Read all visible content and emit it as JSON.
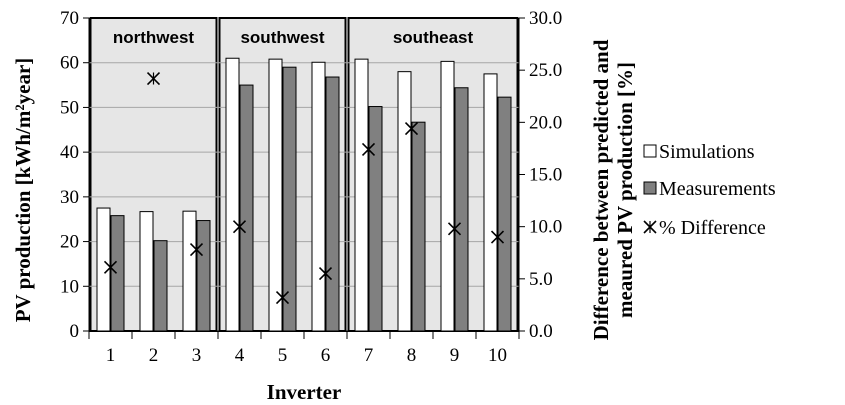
{
  "chart_data": {
    "type": "bar",
    "xlabel": "Inverter",
    "ylabel": "PV production [kWh/m²year]",
    "y2label_line1": "Difference between predicted and",
    "y2label_line2": "meaured PV production [%]",
    "ylim": [
      0,
      70
    ],
    "y2lim": [
      0,
      30
    ],
    "yticks": [
      "0",
      "10",
      "20",
      "30",
      "40",
      "50",
      "60",
      "70"
    ],
    "y2ticks": [
      "0.0",
      "5.0",
      "10.0",
      "15.0",
      "20.0",
      "25.0",
      "30.0"
    ],
    "categories": [
      "1",
      "2",
      "3",
      "4",
      "5",
      "6",
      "7",
      "8",
      "9",
      "10"
    ],
    "regions": [
      {
        "label": "northwest",
        "from": 1,
        "to": 3
      },
      {
        "label": "southwest",
        "from": 4,
        "to": 6
      },
      {
        "label": "southeast",
        "from": 7,
        "to": 10
      }
    ],
    "series": [
      {
        "name": "Simulations",
        "axis": "left",
        "kind": "bar",
        "color": "#ffffff",
        "values": [
          27.5,
          26.7,
          26.8,
          61.0,
          60.8,
          60.1,
          60.8,
          58.0,
          60.3,
          57.5
        ]
      },
      {
        "name": "Measurements",
        "axis": "left",
        "kind": "bar",
        "color": "#808080",
        "values": [
          25.8,
          20.2,
          24.7,
          55.0,
          59.0,
          56.8,
          50.2,
          46.7,
          54.4,
          52.3
        ]
      },
      {
        "name": "% Difference",
        "axis": "right",
        "kind": "marker",
        "values": [
          6.1,
          24.2,
          7.8,
          10.0,
          3.2,
          5.5,
          17.4,
          19.4,
          9.8,
          9.0
        ]
      }
    ],
    "legend_position": "right",
    "grid": true,
    "colors": {
      "region_bg": "#e6e6e6",
      "grid": "#a6a6a6",
      "bar_stroke": "#000000"
    }
  }
}
